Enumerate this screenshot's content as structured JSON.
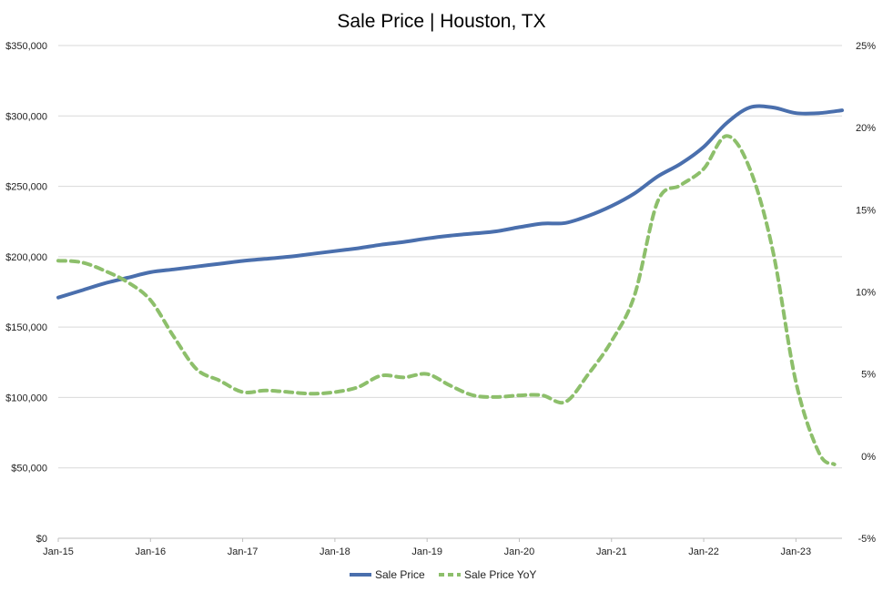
{
  "chart_data": {
    "type": "line",
    "title": "Sale Price | Houston, TX",
    "x_tick_labels": [
      "Jan-15",
      "Jan-16",
      "Jan-17",
      "Jan-18",
      "Jan-19",
      "Jan-20",
      "Jan-21",
      "Jan-22",
      "Jan-23"
    ],
    "x_range": [
      "2015-01",
      "2023-07"
    ],
    "y_left": {
      "range": [
        0,
        350000
      ],
      "ticks": [
        0,
        50000,
        100000,
        150000,
        200000,
        250000,
        300000,
        350000
      ],
      "tick_labels": [
        "$0",
        "$50,000",
        "$100,000",
        "$150,000",
        "$200,000",
        "$250,000",
        "$300,000",
        "$350,000"
      ]
    },
    "y_right": {
      "range": [
        -5,
        25
      ],
      "ticks": [
        -5,
        0,
        5,
        10,
        15,
        20,
        25
      ],
      "tick_labels": [
        "-5%",
        "0%",
        "5%",
        "10%",
        "15%",
        "20%",
        "25%"
      ]
    },
    "grid": true,
    "legend_position": "bottom",
    "series": [
      {
        "name": "Sale Price",
        "axis": "left",
        "color": "#4a6fad",
        "style": "solid",
        "points": [
          [
            "2015-01",
            171000
          ],
          [
            "2015-04",
            176000
          ],
          [
            "2015-07",
            181000
          ],
          [
            "2015-10",
            185000
          ],
          [
            "2016-01",
            189000
          ],
          [
            "2016-04",
            191000
          ],
          [
            "2016-07",
            193000
          ],
          [
            "2016-10",
            195000
          ],
          [
            "2017-01",
            197000
          ],
          [
            "2017-04",
            198500
          ],
          [
            "2017-07",
            200000
          ],
          [
            "2017-10",
            202000
          ],
          [
            "2018-01",
            204000
          ],
          [
            "2018-04",
            206000
          ],
          [
            "2018-07",
            208500
          ],
          [
            "2018-10",
            210500
          ],
          [
            "2019-01",
            213000
          ],
          [
            "2019-04",
            215000
          ],
          [
            "2019-07",
            216500
          ],
          [
            "2019-10",
            218000
          ],
          [
            "2020-01",
            221000
          ],
          [
            "2020-04",
            223500
          ],
          [
            "2020-07",
            224000
          ],
          [
            "2020-10",
            229000
          ],
          [
            "2021-01",
            236000
          ],
          [
            "2021-04",
            245000
          ],
          [
            "2021-07",
            257000
          ],
          [
            "2021-10",
            266000
          ],
          [
            "2022-01",
            278000
          ],
          [
            "2022-04",
            295000
          ],
          [
            "2022-07",
            306000
          ],
          [
            "2022-10",
            306000
          ],
          [
            "2023-01",
            302000
          ],
          [
            "2023-04",
            302000
          ],
          [
            "2023-07",
            304000
          ]
        ]
      },
      {
        "name": "Sale Price YoY",
        "axis": "right",
        "color": "#8dbf6b",
        "style": "dashed",
        "points": [
          [
            "2015-01",
            11.9
          ],
          [
            "2015-04",
            11.8
          ],
          [
            "2015-07",
            11.3
          ],
          [
            "2015-10",
            10.6
          ],
          [
            "2016-01",
            9.5
          ],
          [
            "2016-04",
            7.3
          ],
          [
            "2016-07",
            5.3
          ],
          [
            "2016-10",
            4.6
          ],
          [
            "2017-01",
            3.9
          ],
          [
            "2017-04",
            4.0
          ],
          [
            "2017-07",
            3.9
          ],
          [
            "2017-10",
            3.8
          ],
          [
            "2018-01",
            3.9
          ],
          [
            "2018-04",
            4.2
          ],
          [
            "2018-07",
            4.9
          ],
          [
            "2018-10",
            4.8
          ],
          [
            "2019-01",
            5.0
          ],
          [
            "2019-04",
            4.3
          ],
          [
            "2019-07",
            3.7
          ],
          [
            "2019-10",
            3.6
          ],
          [
            "2020-01",
            3.7
          ],
          [
            "2020-04",
            3.7
          ],
          [
            "2020-07",
            3.3
          ],
          [
            "2020-10",
            5.0
          ],
          [
            "2021-01",
            7.0
          ],
          [
            "2021-04",
            9.8
          ],
          [
            "2021-07",
            15.5
          ],
          [
            "2021-10",
            16.5
          ],
          [
            "2022-01",
            17.5
          ],
          [
            "2022-04",
            19.5
          ],
          [
            "2022-07",
            17.5
          ],
          [
            "2022-10",
            12.5
          ],
          [
            "2023-01",
            4.5
          ],
          [
            "2023-04",
            0.2
          ],
          [
            "2023-06",
            -0.5
          ]
        ]
      }
    ]
  }
}
